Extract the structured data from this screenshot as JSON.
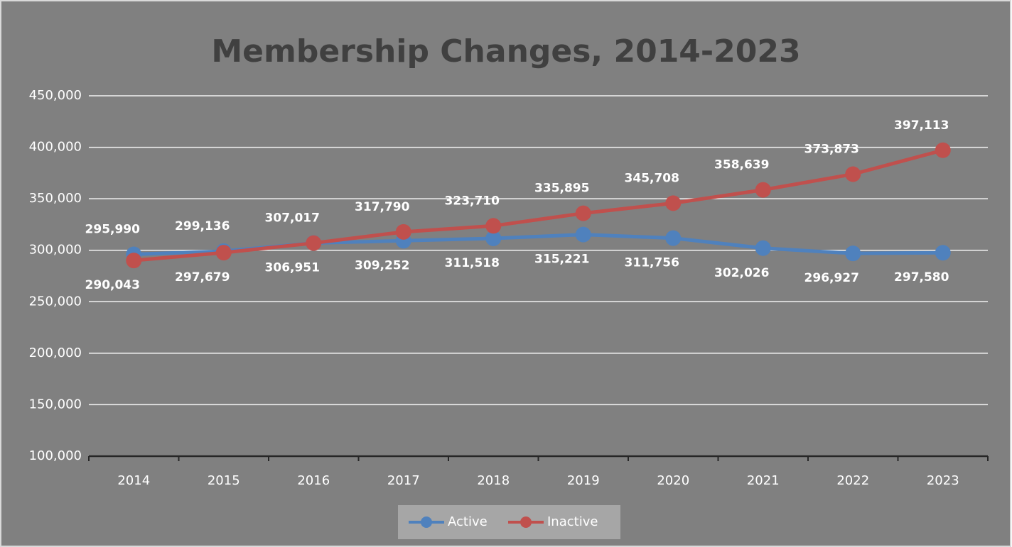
{
  "chart_data": {
    "type": "line",
    "title": "Membership Changes, 2014-2023",
    "categories": [
      "2014",
      "2015",
      "2016",
      "2017",
      "2018",
      "2019",
      "2020",
      "2021",
      "2022",
      "2023"
    ],
    "series": [
      {
        "name": "Active",
        "color": "#4f81bd",
        "values": [
          295990,
          299136,
          307017,
          309252,
          311518,
          315221,
          311756,
          302026,
          296927,
          297580
        ],
        "value_labels": [
          "295,990",
          "299,136",
          "307,017",
          "309,252",
          "311,518",
          "315,221",
          "311,756",
          "302,026",
          "296,927",
          "297,580"
        ]
      },
      {
        "name": "Inactive",
        "color": "#c0504d",
        "values": [
          290043,
          297679,
          306951,
          317790,
          323710,
          335895,
          345708,
          358639,
          373873,
          397113
        ],
        "value_labels": [
          "290,043",
          "297,679",
          "306,951",
          "317,790",
          "323,710",
          "335,895",
          "345,708",
          "358,639",
          "373,873",
          "397,113"
        ]
      }
    ],
    "ylim": [
      100000,
      450000
    ],
    "yticks": [
      {
        "value": 100000,
        "label": "100,000"
      },
      {
        "value": 150000,
        "label": "150,000"
      },
      {
        "value": 200000,
        "label": "200,000"
      },
      {
        "value": 250000,
        "label": "250,000"
      },
      {
        "value": 300000,
        "label": "300,000"
      },
      {
        "value": 350000,
        "label": "350,000"
      },
      {
        "value": 400000,
        "label": "400,000"
      },
      {
        "value": 450000,
        "label": "450,000"
      }
    ],
    "grid": true,
    "legend": "bottom"
  }
}
